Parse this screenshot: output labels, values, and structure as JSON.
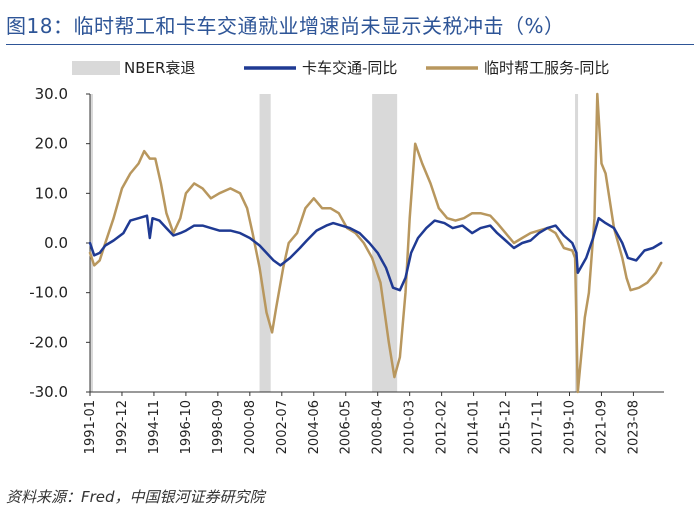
{
  "header": {
    "title": "图18：临时帮工和卡车交通就业增速尚未显示关税冲击（%）"
  },
  "footer": {
    "source": "资料来源：Fred，中国银河证券研究院"
  },
  "chart_data": {
    "type": "line",
    "title": "图18：临时帮工和卡车交通就业增速尚未显示关税冲击（%）",
    "xlabel": "",
    "ylabel": "",
    "x_range": [
      "1991-01",
      "2025-06"
    ],
    "ylim": [
      -30,
      30
    ],
    "y_ticks": [
      30,
      20,
      10,
      0,
      -10,
      -20,
      -30
    ],
    "y_tick_labels": [
      "30.0",
      "20.0",
      "10.0",
      "0.0",
      "-10.0",
      "-20.0",
      "-30.0"
    ],
    "x_tick_labels": [
      "1991-01",
      "1992-12",
      "1994-11",
      "1996-10",
      "1998-09",
      "2000-08",
      "2002-07",
      "2004-06",
      "2006-05",
      "2008-04",
      "2010-03",
      "2012-02",
      "2014-01",
      "2015-12",
      "2017-11",
      "2019-10",
      "2021-09",
      "2023-08"
    ],
    "grid": false,
    "legend_position": "top",
    "recessions": {
      "name": "NBER衰退",
      "color": "#d9d9d9",
      "periods": [
        [
          "1991-01",
          "1991-03"
        ],
        [
          "2001-03",
          "2001-11"
        ],
        [
          "2007-12",
          "2009-06"
        ],
        [
          "2020-02",
          "2020-04"
        ]
      ]
    },
    "series": [
      {
        "name": "卡车交通-同比",
        "color": "#1f3a93",
        "points": [
          [
            "1991-01",
            0.0
          ],
          [
            "1991-04",
            -2.5
          ],
          [
            "1991-08",
            -2.0
          ],
          [
            "1991-12",
            -0.5
          ],
          [
            "1992-06",
            0.5
          ],
          [
            "1993-01",
            2.0
          ],
          [
            "1993-06",
            4.5
          ],
          [
            "1993-12",
            5.0
          ],
          [
            "1994-06",
            5.5
          ],
          [
            "1994-08",
            1.0
          ],
          [
            "1994-10",
            5.0
          ],
          [
            "1995-03",
            4.5
          ],
          [
            "1995-08",
            3.0
          ],
          [
            "1996-01",
            1.5
          ],
          [
            "1996-06",
            2.0
          ],
          [
            "1996-10",
            2.5
          ],
          [
            "1997-04",
            3.5
          ],
          [
            "1997-10",
            3.5
          ],
          [
            "1998-04",
            3.0
          ],
          [
            "1998-10",
            2.5
          ],
          [
            "1999-06",
            2.5
          ],
          [
            "2000-01",
            2.0
          ],
          [
            "2000-08",
            1.0
          ],
          [
            "2001-03",
            -0.5
          ],
          [
            "2001-08",
            -2.0
          ],
          [
            "2002-01",
            -3.5
          ],
          [
            "2002-06",
            -4.5
          ],
          [
            "2003-01",
            -3.0
          ],
          [
            "2003-08",
            -1.0
          ],
          [
            "2004-01",
            0.5
          ],
          [
            "2004-08",
            2.5
          ],
          [
            "2005-03",
            3.5
          ],
          [
            "2005-08",
            4.0
          ],
          [
            "2006-02",
            3.5
          ],
          [
            "2006-08",
            3.0
          ],
          [
            "2007-03",
            2.0
          ],
          [
            "2007-10",
            0.0
          ],
          [
            "2008-04",
            -2.0
          ],
          [
            "2008-10",
            -5.0
          ],
          [
            "2009-03",
            -9.0
          ],
          [
            "2009-08",
            -9.5
          ],
          [
            "2009-12",
            -7.0
          ],
          [
            "2010-04",
            -2.0
          ],
          [
            "2010-09",
            1.0
          ],
          [
            "2011-03",
            3.0
          ],
          [
            "2011-09",
            4.5
          ],
          [
            "2012-04",
            4.0
          ],
          [
            "2012-10",
            3.0
          ],
          [
            "2013-05",
            3.5
          ],
          [
            "2013-12",
            2.0
          ],
          [
            "2014-06",
            3.0
          ],
          [
            "2015-01",
            3.5
          ],
          [
            "2015-06",
            2.0
          ],
          [
            "2015-12",
            0.5
          ],
          [
            "2016-06",
            -1.0
          ],
          [
            "2016-12",
            0.0
          ],
          [
            "2017-06",
            0.5
          ],
          [
            "2017-12",
            2.0
          ],
          [
            "2018-06",
            3.0
          ],
          [
            "2018-12",
            3.5
          ],
          [
            "2019-06",
            1.5
          ],
          [
            "2019-12",
            0.0
          ],
          [
            "2020-03",
            -2.0
          ],
          [
            "2020-04",
            -6.0
          ],
          [
            "2020-10",
            -3.0
          ],
          [
            "2021-03",
            1.0
          ],
          [
            "2021-07",
            5.0
          ],
          [
            "2021-12",
            4.0
          ],
          [
            "2022-06",
            3.0
          ],
          [
            "2022-12",
            0.0
          ],
          [
            "2023-04",
            -3.0
          ],
          [
            "2023-10",
            -3.5
          ],
          [
            "2024-04",
            -1.5
          ],
          [
            "2024-10",
            -1.0
          ],
          [
            "2025-04",
            0.0
          ]
        ]
      },
      {
        "name": "临时帮工服务-同比",
        "color": "#b8975e",
        "points": [
          [
            "1991-01",
            -2.0
          ],
          [
            "1991-04",
            -4.5
          ],
          [
            "1991-08",
            -3.5
          ],
          [
            "1991-12",
            0.0
          ],
          [
            "1992-06",
            5.0
          ],
          [
            "1992-12",
            11.0
          ],
          [
            "1993-06",
            14.0
          ],
          [
            "1993-12",
            16.0
          ],
          [
            "1994-04",
            18.5
          ],
          [
            "1994-08",
            17.0
          ],
          [
            "1994-12",
            17.0
          ],
          [
            "1995-04",
            12.0
          ],
          [
            "1995-08",
            6.0
          ],
          [
            "1996-01",
            2.0
          ],
          [
            "1996-06",
            5.0
          ],
          [
            "1996-10",
            10.0
          ],
          [
            "1997-04",
            12.0
          ],
          [
            "1997-10",
            11.0
          ],
          [
            "1998-04",
            9.0
          ],
          [
            "1998-10",
            10.0
          ],
          [
            "1999-06",
            11.0
          ],
          [
            "2000-01",
            10.0
          ],
          [
            "2000-06",
            7.0
          ],
          [
            "2000-10",
            2.0
          ],
          [
            "2001-03",
            -5.0
          ],
          [
            "2001-08",
            -14.0
          ],
          [
            "2001-12",
            -18.0
          ],
          [
            "2002-03",
            -13.0
          ],
          [
            "2002-08",
            -5.0
          ],
          [
            "2002-12",
            0.0
          ],
          [
            "2003-06",
            2.0
          ],
          [
            "2003-12",
            7.0
          ],
          [
            "2004-06",
            9.0
          ],
          [
            "2004-12",
            7.0
          ],
          [
            "2005-06",
            7.0
          ],
          [
            "2005-12",
            6.0
          ],
          [
            "2006-06",
            3.0
          ],
          [
            "2006-12",
            2.0
          ],
          [
            "2007-06",
            0.0
          ],
          [
            "2007-12",
            -3.0
          ],
          [
            "2008-06",
            -8.0
          ],
          [
            "2008-12",
            -20.0
          ],
          [
            "2009-04",
            -27.0
          ],
          [
            "2009-08",
            -23.0
          ],
          [
            "2009-12",
            -10.0
          ],
          [
            "2010-03",
            5.0
          ],
          [
            "2010-07",
            20.0
          ],
          [
            "2010-12",
            16.0
          ],
          [
            "2011-06",
            12.0
          ],
          [
            "2011-12",
            7.0
          ],
          [
            "2012-06",
            5.0
          ],
          [
            "2012-12",
            4.5
          ],
          [
            "2013-06",
            5.0
          ],
          [
            "2013-12",
            6.0
          ],
          [
            "2014-06",
            6.0
          ],
          [
            "2015-01",
            5.5
          ],
          [
            "2015-06",
            4.0
          ],
          [
            "2015-12",
            2.0
          ],
          [
            "2016-06",
            0.0
          ],
          [
            "2016-12",
            1.0
          ],
          [
            "2017-06",
            2.0
          ],
          [
            "2017-12",
            2.5
          ],
          [
            "2018-06",
            3.0
          ],
          [
            "2018-12",
            2.0
          ],
          [
            "2019-06",
            -1.0
          ],
          [
            "2019-12",
            -1.5
          ],
          [
            "2020-02",
            -3.0
          ],
          [
            "2020-04",
            -30.0
          ],
          [
            "2020-09",
            -15.0
          ],
          [
            "2020-12",
            -10.0
          ],
          [
            "2021-04",
            5.0
          ],
          [
            "2021-06",
            30.0
          ],
          [
            "2021-09",
            16.0
          ],
          [
            "2021-12",
            14.0
          ],
          [
            "2022-06",
            3.0
          ],
          [
            "2022-12",
            -3.0
          ],
          [
            "2023-03",
            -7.0
          ],
          [
            "2023-06",
            -9.5
          ],
          [
            "2023-12",
            -9.0
          ],
          [
            "2024-06",
            -8.0
          ],
          [
            "2024-12",
            -6.0
          ],
          [
            "2025-04",
            -4.0
          ]
        ]
      }
    ]
  }
}
